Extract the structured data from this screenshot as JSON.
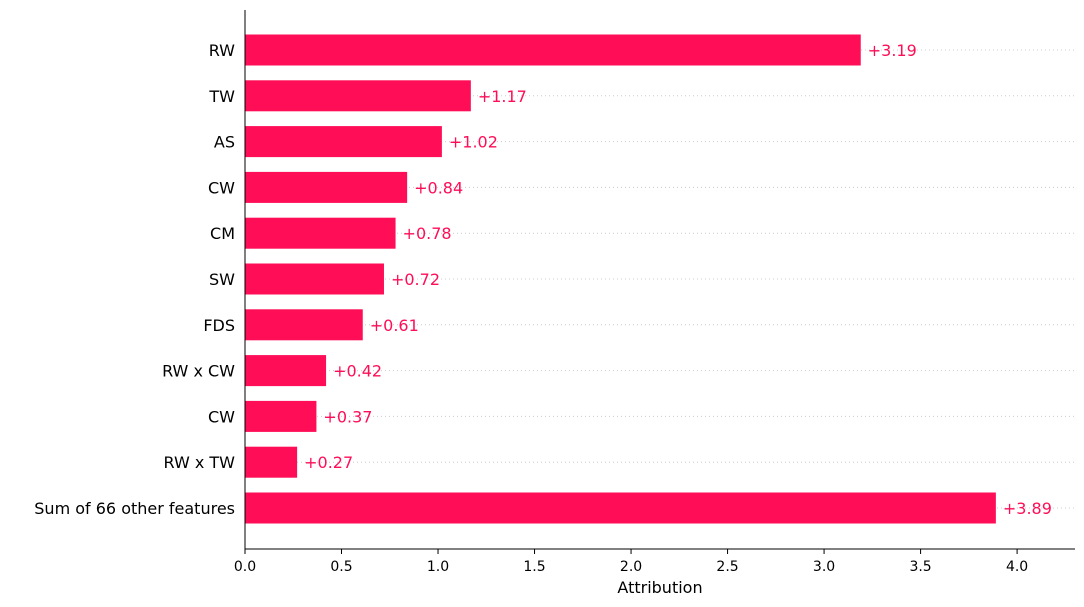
{
  "chart_data": {
    "type": "bar",
    "orientation": "horizontal",
    "categories": [
      "RW",
      "TW",
      "AS",
      "CW",
      "CM",
      "SW",
      "FDS",
      "RW x CW",
      "CW",
      "RW x TW",
      "Sum of 66 other features"
    ],
    "values": [
      3.19,
      1.17,
      1.02,
      0.84,
      0.78,
      0.72,
      0.61,
      0.42,
      0.37,
      0.27,
      3.89
    ],
    "value_labels": [
      "+3.19",
      "+1.17",
      "+1.02",
      "+0.84",
      "+0.78",
      "+0.72",
      "+0.61",
      "+0.42",
      "+0.37",
      "+0.27",
      "+3.89"
    ],
    "title": "",
    "xlabel": "Attribution",
    "ylabel": "",
    "xlim": [
      0,
      4.3
    ],
    "xticks": [
      0.0,
      0.5,
      1.0,
      1.5,
      2.0,
      2.5,
      3.0,
      3.5,
      4.0
    ],
    "xtick_labels": [
      "0.0",
      "0.5",
      "1.0",
      "1.5",
      "2.0",
      "2.5",
      "3.0",
      "3.5",
      "4.0"
    ],
    "grid": "dotted horizontal row lines",
    "bar_color": "#ff0d57",
    "label_color": "#ff0d57"
  }
}
